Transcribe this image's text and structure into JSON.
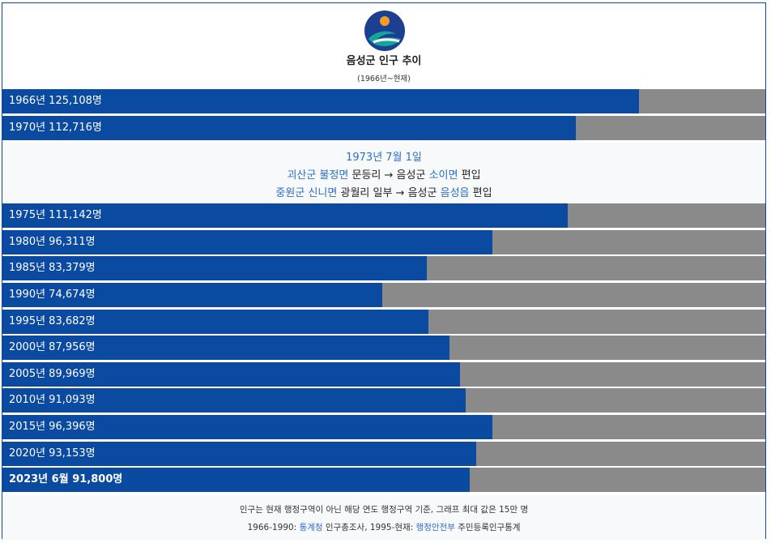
{
  "header": {
    "title": "음성군 인구 추이",
    "subtitle": "(1966년~현재)",
    "logo_icon": "eumseong-emblem-icon",
    "logo_colors": {
      "sun": "#f39c26",
      "sky": "#1c3f91",
      "wave": "#13a49b"
    }
  },
  "colors": {
    "bar": "#0a4aa0",
    "remainder": "#8a8a8a",
    "note_bg": "#f8f9fa",
    "link": "#2a6fc9"
  },
  "chart_data": {
    "type": "bar",
    "orientation": "horizontal",
    "title": "음성군 인구 추이",
    "subtitle": "(1966년~현재)",
    "xlim": [
      0,
      150000
    ],
    "categories": [
      "1966년",
      "1970년",
      "1975년",
      "1980년",
      "1985년",
      "1990년",
      "1995년",
      "2000년",
      "2005년",
      "2010년",
      "2015년",
      "2020년",
      "2023년 6월"
    ],
    "values": [
      125108,
      112716,
      111142,
      96311,
      83379,
      74674,
      83682,
      87956,
      89969,
      91093,
      96396,
      93153,
      91800
    ],
    "labels": [
      "1966년 125,108명",
      "1970년 112,716명",
      "1975년 111,142명",
      "1980년 96,311명",
      "1985년 83,379명",
      "1990년 74,674명",
      "1995년 83,682명",
      "2000년 87,956명",
      "2005년 89,969명",
      "2010년 91,093명",
      "2015년 96,396명",
      "2020년 93,153명",
      "2023년 6월 91,800명"
    ]
  },
  "note": {
    "date": "1973년 7월 1일",
    "line2": {
      "from_a": "괴산군",
      "from_b": "불정면",
      "middle": "문등리 → 음성군",
      "to": "소이면",
      "end": "편입"
    },
    "line3": {
      "from_a": "중원군",
      "from_b": "신니면",
      "middle": "광월리 일부 → 음성군",
      "to": "음성읍",
      "end": "편입"
    }
  },
  "footer": {
    "line1": "인구는 현재 행정구역이 아닌 해당 연도 행정구역 기준, 그래프 최대 값은 15만 명",
    "line2_prefix": "1966-1990: ",
    "line2_link1": "통계청",
    "line2_mid": " 인구총조사, 1995-현재: ",
    "line2_link2": "행정안전부",
    "line2_suffix": " 주민등록인구통계"
  }
}
